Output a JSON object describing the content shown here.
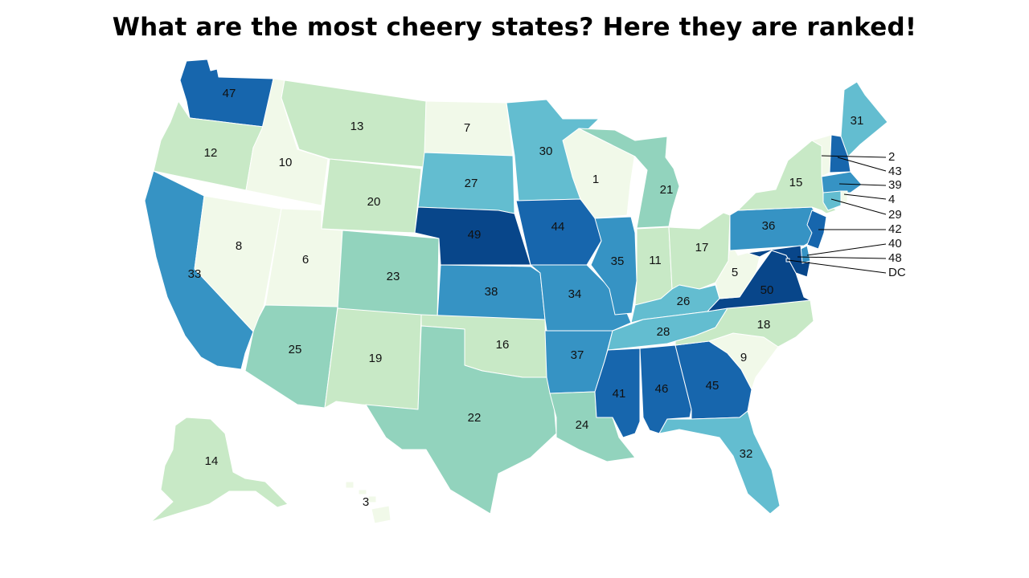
{
  "title": "What are the most cheery states? Here they are ranked!",
  "colors": {
    "r1_10": "#f1f9e9",
    "r11_20": "#c8e9c6",
    "r21_25": "#92d3bd",
    "r26_32": "#63bdd0",
    "r33_40": "#3693c4",
    "r41_47": "#1766ad",
    "r48_50": "#08468a"
  },
  "states": [
    {
      "id": "WA",
      "rank": "47"
    },
    {
      "id": "OR",
      "rank": "12"
    },
    {
      "id": "CA",
      "rank": "33"
    },
    {
      "id": "ID",
      "rank": "10"
    },
    {
      "id": "NV",
      "rank": "8"
    },
    {
      "id": "MT",
      "rank": "13"
    },
    {
      "id": "WY",
      "rank": "20"
    },
    {
      "id": "UT",
      "rank": "6"
    },
    {
      "id": "AZ",
      "rank": "25"
    },
    {
      "id": "CO",
      "rank": "23"
    },
    {
      "id": "NM",
      "rank": "19"
    },
    {
      "id": "ND",
      "rank": "7"
    },
    {
      "id": "SD",
      "rank": "27"
    },
    {
      "id": "NE",
      "rank": "49"
    },
    {
      "id": "KS",
      "rank": "38"
    },
    {
      "id": "OK",
      "rank": "16"
    },
    {
      "id": "TX",
      "rank": "22"
    },
    {
      "id": "MN",
      "rank": "30"
    },
    {
      "id": "IA",
      "rank": "44"
    },
    {
      "id": "MO",
      "rank": "34"
    },
    {
      "id": "AR",
      "rank": "37"
    },
    {
      "id": "LA",
      "rank": "24"
    },
    {
      "id": "WI",
      "rank": "1"
    },
    {
      "id": "IL",
      "rank": "35"
    },
    {
      "id": "MI",
      "rank": "21"
    },
    {
      "id": "IN",
      "rank": "11"
    },
    {
      "id": "OH",
      "rank": "17"
    },
    {
      "id": "KY",
      "rank": "26"
    },
    {
      "id": "TN",
      "rank": "28"
    },
    {
      "id": "MS",
      "rank": "41"
    },
    {
      "id": "AL",
      "rank": "46"
    },
    {
      "id": "GA",
      "rank": "45"
    },
    {
      "id": "FL",
      "rank": "32"
    },
    {
      "id": "SC",
      "rank": "9"
    },
    {
      "id": "NC",
      "rank": "18"
    },
    {
      "id": "VA",
      "rank": "50"
    },
    {
      "id": "WV",
      "rank": "5"
    },
    {
      "id": "PA",
      "rank": "36"
    },
    {
      "id": "NY",
      "rank": "15"
    },
    {
      "id": "ME",
      "rank": "31"
    },
    {
      "id": "AK",
      "rank": "14"
    },
    {
      "id": "HI",
      "rank": "3"
    },
    {
      "id": "VT",
      "rank": "2"
    },
    {
      "id": "NH",
      "rank": "43"
    },
    {
      "id": "MA",
      "rank": "39"
    },
    {
      "id": "RI",
      "rank": "4"
    },
    {
      "id": "CT",
      "rank": "29"
    },
    {
      "id": "NJ",
      "rank": "42"
    },
    {
      "id": "DE",
      "rank": "40"
    },
    {
      "id": "MD",
      "rank": "48"
    },
    {
      "id": "DC",
      "rank": "DC"
    }
  ]
}
